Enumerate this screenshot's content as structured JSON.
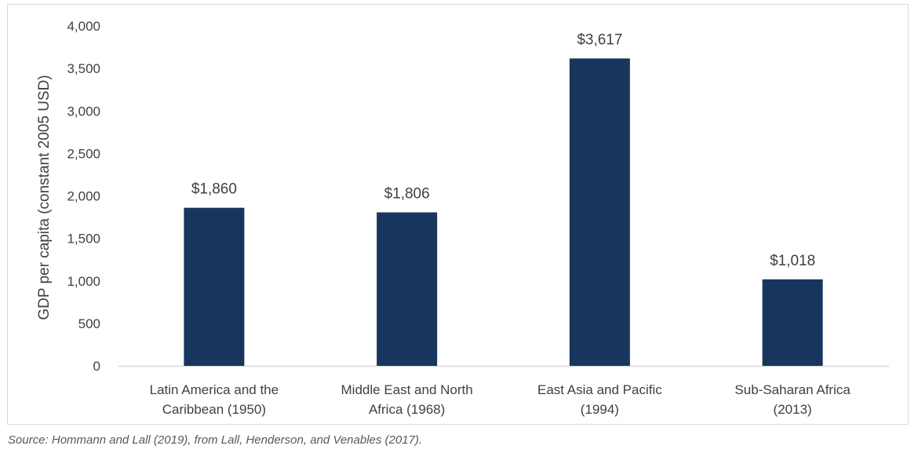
{
  "chart_data": {
    "type": "bar",
    "categories": [
      [
        "Latin America and the",
        "Caribbean (1950)"
      ],
      [
        "Middle East and North",
        "Africa (1968)"
      ],
      [
        "East Asia and Pacific",
        "(1994)"
      ],
      [
        "Sub-Saharan Africa",
        "(2013)"
      ]
    ],
    "values": [
      1860,
      1806,
      3617,
      1018
    ],
    "data_labels": [
      "$1,860",
      "$1,806",
      "$3,617",
      "$1,018"
    ],
    "title": "",
    "xlabel": "",
    "ylabel": "GDP per capita (constant 2005 USD)",
    "ylim": [
      0,
      4000
    ],
    "yticks": [
      "0",
      "500",
      "1,000",
      "1,500",
      "2,000",
      "2,500",
      "3,000",
      "3,500",
      "4,000"
    ],
    "grid": false,
    "legend": "none",
    "bar_color": "#17365d"
  },
  "source_note": "Source: Hommann and Lall (2019), from Lall, Henderson, and Venables (2017)."
}
